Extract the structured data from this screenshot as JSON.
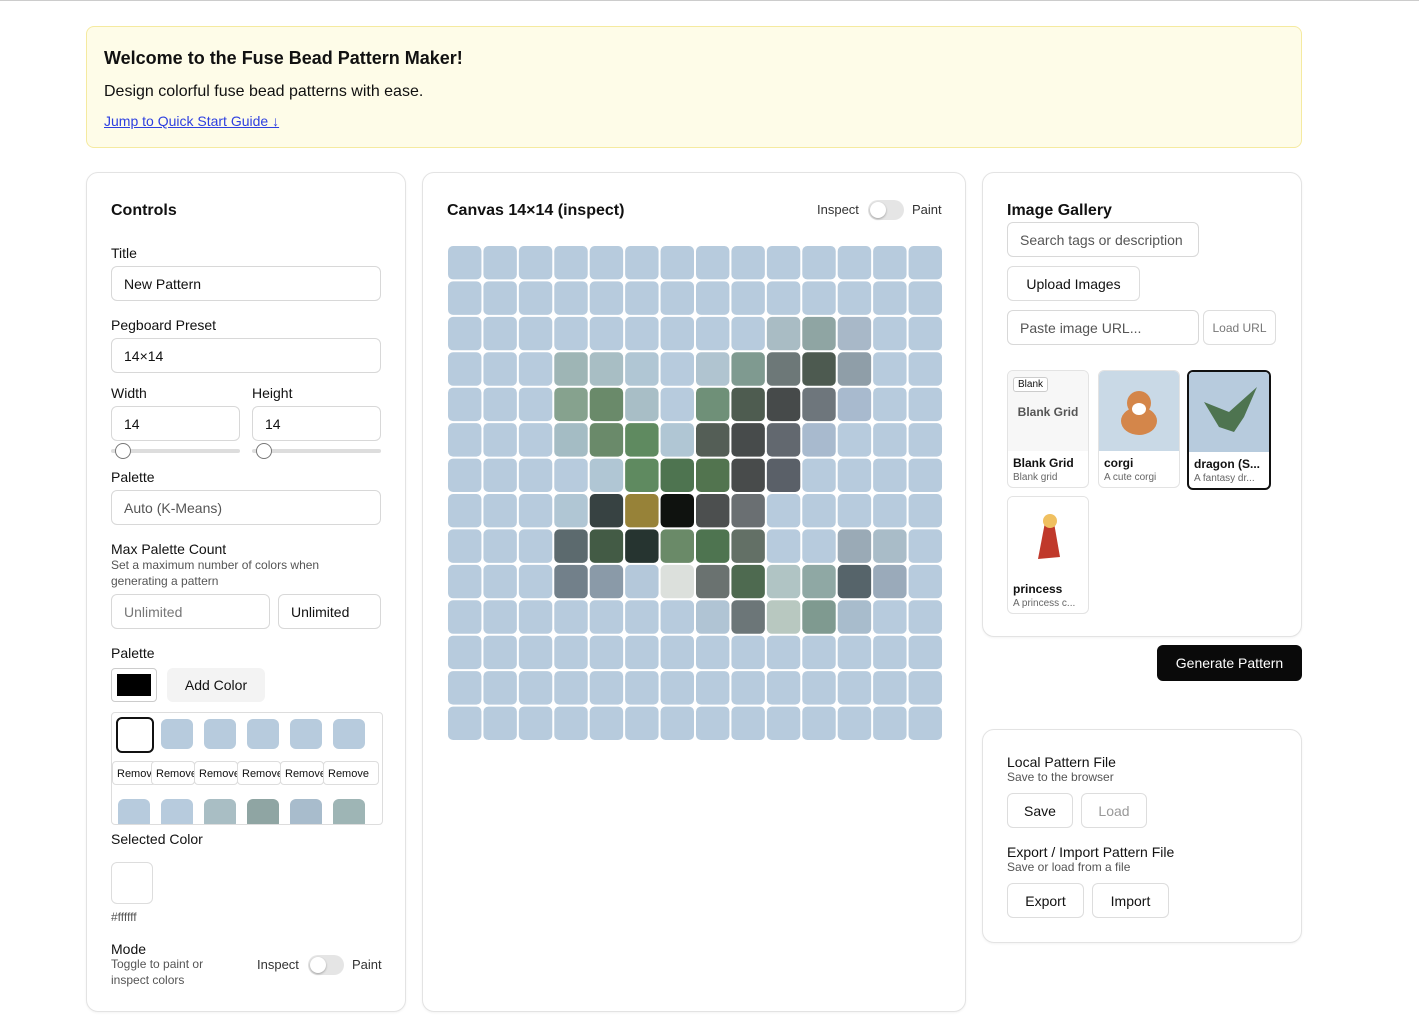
{
  "banner": {
    "title": "Welcome to the Fuse Bead Pattern Maker!",
    "text": "Design colorful fuse bead patterns with ease.",
    "link": "Jump to Quick Start Guide ↓"
  },
  "controls": {
    "title": "Controls",
    "title_label": "Title",
    "title_value": "New Pattern",
    "preset_label": "Pegboard Preset",
    "preset_value": "14×14",
    "width_label": "Width",
    "width_value": "14",
    "height_label": "Height",
    "height_value": "14",
    "palette_label": "Palette",
    "palette_value": "Auto (K-Means)",
    "max_label": "Max Palette Count",
    "max_help": "Set a maximum number of colors when generating a pattern",
    "max_placeholder": "Unlimited",
    "max_select": "Unlimited",
    "palette2_label": "Palette",
    "add_color": "Add Color",
    "remove": "Remove",
    "swatches": [
      "#ffffff",
      "#b7cbdd",
      "#b7cbdd",
      "#b7cbdd",
      "#b7cbdd",
      "#b7cbdd",
      "#b7cbdd",
      "#b7cbdd",
      "#a9bec4",
      "#8fa5a3",
      "#a8bccc",
      "#9eb5b5"
    ],
    "selected_label": "Selected Color",
    "selected_hex": "#ffffff",
    "mode_label": "Mode",
    "mode_help": "Toggle to paint or inspect colors",
    "inspect": "Inspect",
    "paint": "Paint"
  },
  "canvas": {
    "title": "Canvas 14×14 (inspect)",
    "inspect": "Inspect",
    "paint": "Paint",
    "base": "#b7cbdd",
    "cells": [
      [
        null,
        null,
        null,
        null,
        null,
        null,
        null,
        null,
        null,
        null,
        null,
        null,
        null,
        null
      ],
      [
        null,
        null,
        null,
        null,
        null,
        null,
        null,
        null,
        null,
        null,
        null,
        null,
        null,
        null
      ],
      [
        null,
        null,
        null,
        null,
        null,
        null,
        null,
        null,
        null,
        "#a9bcc4",
        "#8fa5a3",
        "#a8b8c8",
        null,
        null
      ],
      [
        null,
        null,
        null,
        "#9eb5b5",
        "#a8bec4",
        "#b0c6d4",
        null,
        "#b0c4d0",
        "#7f9a90",
        "#6d7878",
        "#4d5a50",
        "#8f9ea8",
        null,
        null
      ],
      [
        null,
        null,
        null,
        "#86a28e",
        "#6a8a6a",
        "#a8bec6",
        null,
        "#6f9078",
        "#4e5c50",
        "#464a4a",
        "#6e767c",
        "#a8bace",
        null,
        null
      ],
      [
        null,
        null,
        null,
        "#a4bcc4",
        "#6a8a6a",
        "#5f8a60",
        "#b0c6d4",
        "#545e56",
        "#474b4b",
        "#62686f",
        "#a8bace",
        null,
        null,
        null
      ],
      [
        null,
        null,
        null,
        null,
        "#b0c6d4",
        "#5f8a60",
        "#4e7450",
        "#52744f",
        "#484b4b",
        "#5a6068",
        null,
        null,
        null,
        null
      ],
      [
        null,
        null,
        null,
        "#b0c6d4",
        "#374242",
        "#978238",
        "#0f120f",
        "#4c4f4f",
        "#6a6f72",
        null,
        null,
        null,
        null,
        null
      ],
      [
        null,
        null,
        null,
        "#5c6a6e",
        "#435b45",
        "#263430",
        "#6a8a68",
        "#4e7450",
        "#637066",
        null,
        null,
        "#9aaab6",
        "#a9bcc8",
        null
      ],
      [
        null,
        null,
        null,
        "#72808a",
        "#8a9aa8",
        "#b4c8da",
        "#dce0dc",
        "#6a7270",
        "#4e6a50",
        "#b0c4c4",
        "#8fa8a4",
        "#56646a",
        "#9aaaba",
        null
      ],
      [
        null,
        null,
        null,
        null,
        null,
        null,
        null,
        "#b0c4d4",
        "#6c7678",
        "#b8c8c0",
        "#7f9a90",
        "#a8bccc",
        null,
        null
      ],
      [
        null,
        null,
        null,
        null,
        null,
        null,
        null,
        null,
        null,
        null,
        null,
        null,
        null,
        null
      ],
      [
        null,
        null,
        null,
        null,
        null,
        null,
        null,
        null,
        null,
        null,
        null,
        null,
        null,
        null
      ],
      [
        null,
        null,
        null,
        null,
        null,
        null,
        null,
        null,
        null,
        null,
        null,
        null,
        null,
        null
      ]
    ]
  },
  "gallery": {
    "title": "Image Gallery",
    "search": "Search tags or description",
    "upload": "Upload Images",
    "url": "Paste image URL...",
    "load_url": "Load URL",
    "blank_badge": "Blank",
    "blank_thumb": "Blank Grid",
    "items": [
      {
        "name": "Blank Grid",
        "desc": "Blank grid"
      },
      {
        "name": "corgi",
        "desc": "A cute corgi"
      },
      {
        "name": "dragon (S...",
        "desc": "A fantasy dr..."
      },
      {
        "name": "princess",
        "desc": "A princess c..."
      }
    ]
  },
  "generate": "Generate Pattern",
  "files": {
    "local_title": "Local Pattern File",
    "local_help": "Save to the browser",
    "save": "Save",
    "load": "Load",
    "export_title": "Export / Import Pattern File",
    "export_help": "Save or load from a file",
    "export": "Export",
    "import": "Import"
  }
}
